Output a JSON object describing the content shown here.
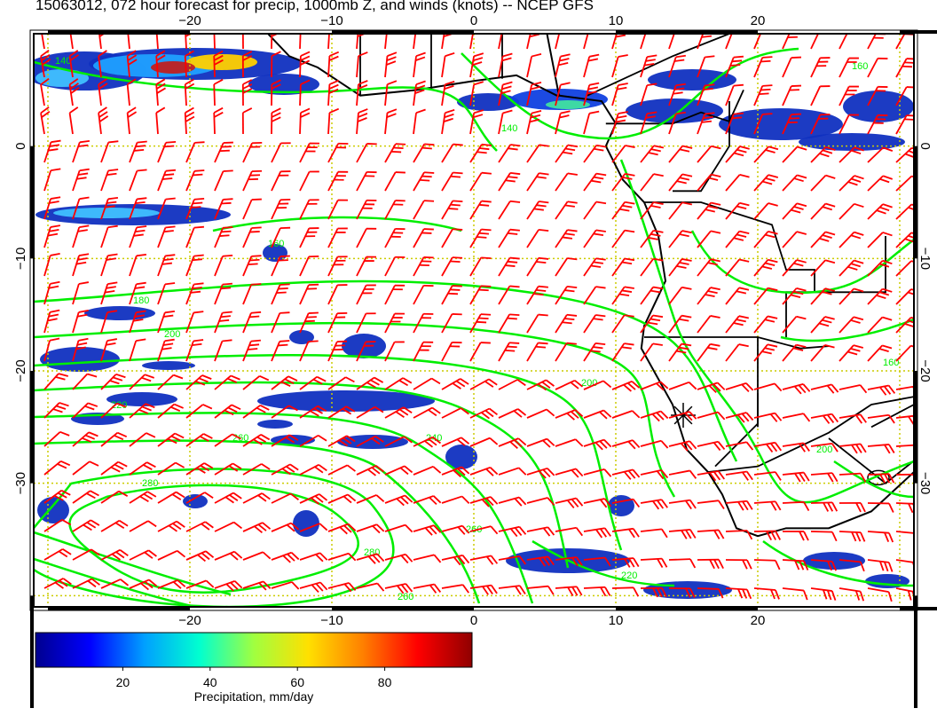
{
  "title": "15063012, 072 hour forecast for precip, 1000mb Z, and winds (knots) -- NCEP GFS",
  "map": {
    "lon_range": [
      -31,
      31
    ],
    "lat_range": [
      -41,
      10
    ],
    "lon_ticks": [
      {
        "value": -20,
        "label": "−20"
      },
      {
        "value": -10,
        "label": "−10"
      },
      {
        "value": 0,
        "label": "0"
      },
      {
        "value": 10,
        "label": "10"
      },
      {
        "value": 20,
        "label": "20"
      }
    ],
    "lat_ticks": [
      {
        "value": 0,
        "label": "0"
      },
      {
        "value": -10,
        "label": "−10"
      },
      {
        "value": -20,
        "label": "−20"
      },
      {
        "value": -30,
        "label": "−30"
      }
    ],
    "colors": {
      "barb": "#ff0000",
      "contour": "#00ee00",
      "land": "#000000",
      "grid": "#cccc00",
      "precip_light": "#0a1a8a",
      "precip_mid": "#3a8aff",
      "precip_heavy": "#aa1010"
    },
    "contour_labels": [
      {
        "text": "140"
      },
      {
        "text": "160"
      },
      {
        "text": "180"
      },
      {
        "text": "200"
      },
      {
        "text": "220"
      },
      {
        "text": "240"
      },
      {
        "text": "260"
      },
      {
        "text": "280"
      }
    ]
  },
  "colorbar": {
    "label": "Precipitation, mm/day",
    "range": [
      0,
      100
    ],
    "ticks": [
      {
        "value": 20,
        "label": "20"
      },
      {
        "value": 40,
        "label": "40"
      },
      {
        "value": 60,
        "label": "60"
      },
      {
        "value": 80,
        "label": "80"
      }
    ],
    "stops": [
      "#00008f",
      "#0000ff",
      "#00a0ff",
      "#00ffd0",
      "#a0ff40",
      "#ffe000",
      "#ff8000",
      "#ff0000",
      "#900000"
    ]
  }
}
